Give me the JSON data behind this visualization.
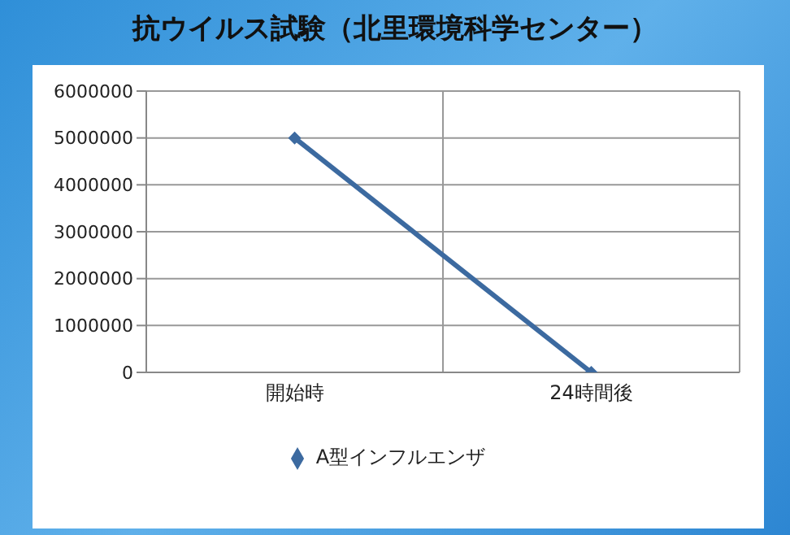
{
  "chart_data": {
    "type": "line",
    "title": "抗ウイルス試験（北里環境科学センター）",
    "categories": [
      "開始時",
      "24時間後"
    ],
    "series": [
      {
        "name": "A型インフルエンザ",
        "color": "#3c6aa0",
        "values": [
          5000000,
          0
        ]
      }
    ],
    "ylim": [
      0,
      6000000
    ],
    "yticks": [
      0,
      1000000,
      2000000,
      3000000,
      4000000,
      5000000,
      6000000
    ],
    "grid": true,
    "legend": "bottom",
    "marker": "diamond",
    "line_style": "solid"
  }
}
